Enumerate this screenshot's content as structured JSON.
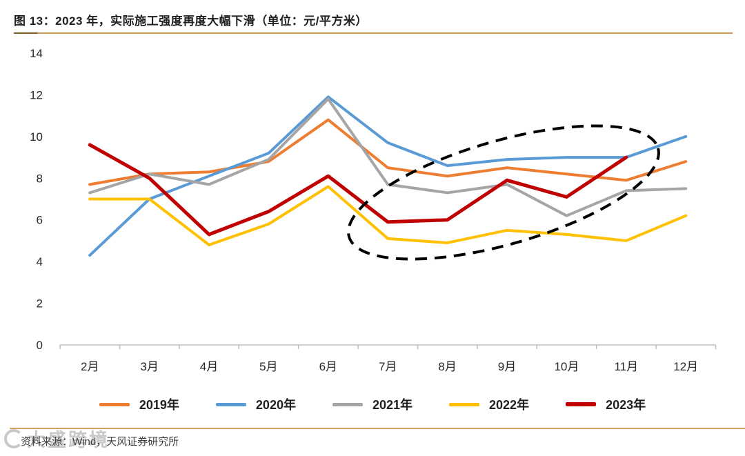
{
  "title": "图 13：2023 年，实际施工强度再度大幅下滑（单位：元/平方米）",
  "source": "资料来源：Wind，天风证券研究所",
  "watermark": {
    "text": "大盛跨境"
  },
  "colors": {
    "accent_rule": "#CB9C50",
    "axis_line": "#BFBFBF",
    "axis_text": "#262626",
    "annotation": "#000000"
  },
  "chart_data": {
    "type": "line",
    "categories": [
      "2月",
      "3月",
      "4月",
      "5月",
      "6月",
      "7月",
      "8月",
      "9月",
      "10月",
      "11月",
      "12月"
    ],
    "series": [
      {
        "name": "2019年",
        "color": "#ED7D31",
        "values": [
          7.7,
          8.2,
          8.3,
          8.8,
          10.8,
          8.5,
          8.1,
          8.5,
          8.2,
          7.9,
          8.8
        ]
      },
      {
        "name": "2020年",
        "color": "#5B9BD5",
        "values": [
          4.3,
          7.0,
          8.1,
          9.2,
          11.9,
          9.7,
          8.6,
          8.9,
          9.0,
          9.0,
          10.0
        ]
      },
      {
        "name": "2021年",
        "color": "#A5A5A5",
        "values": [
          7.3,
          8.2,
          7.7,
          8.9,
          11.8,
          7.7,
          7.3,
          7.7,
          6.2,
          7.4,
          7.5
        ]
      },
      {
        "name": "2022年",
        "color": "#FFC000",
        "values": [
          7.0,
          7.0,
          4.8,
          5.8,
          7.6,
          5.1,
          4.9,
          5.5,
          5.3,
          5.0,
          6.2
        ]
      },
      {
        "name": "2023年",
        "color": "#C00000",
        "values": [
          9.6,
          8.0,
          5.3,
          6.4,
          8.1,
          5.9,
          6.0,
          7.9,
          7.1,
          9.0,
          null
        ]
      }
    ],
    "ylim": [
      0,
      14
    ],
    "ytick_step": 2,
    "xlabel": "",
    "ylabel": "",
    "grid": false,
    "legend_position": "bottom",
    "annotation": {
      "type": "ellipse",
      "style": "dashed",
      "color": "#000000",
      "around": "7月至11月区域（2023年回升段）"
    }
  }
}
